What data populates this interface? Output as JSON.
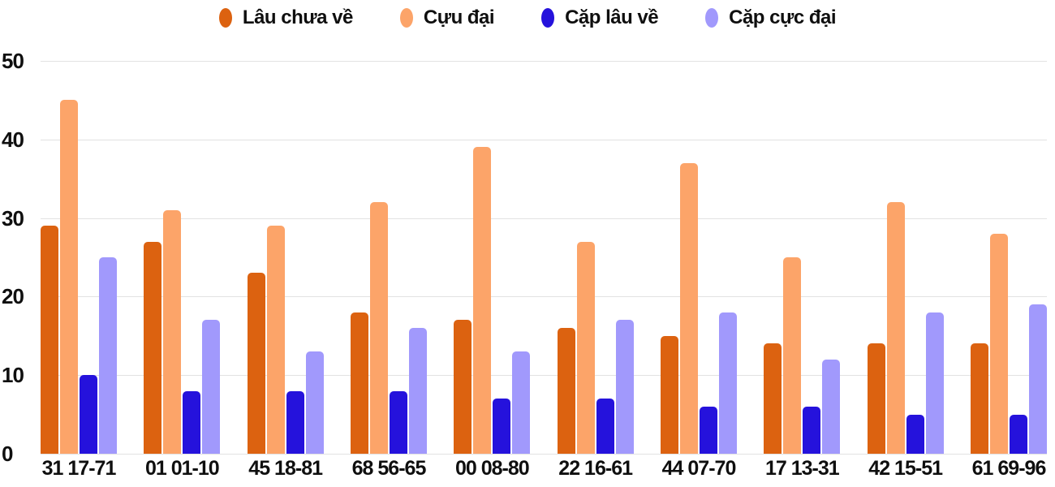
{
  "legend": {
    "items": [
      {
        "label": "Lâu chưa về",
        "color": "#dc6210"
      },
      {
        "label": "Cựu đại",
        "color": "#fca469"
      },
      {
        "label": "Cặp lâu về",
        "color": "#2512dc"
      },
      {
        "label": "Cặp cực đại",
        "color": "#a199fc"
      }
    ]
  },
  "colors": {
    "grid": "#e2e2e2",
    "text": "#0f0f0f",
    "background": "#ffffff"
  },
  "chart_data": {
    "type": "bar",
    "title": "",
    "xlabel": "",
    "ylabel": "",
    "grid": true,
    "legend_position": "top",
    "ylim": [
      0,
      50
    ],
    "yticks": [
      0,
      10,
      20,
      30,
      40,
      50
    ],
    "categories": [
      "31 17-71",
      "01 01-10",
      "45 18-81",
      "68 56-65",
      "00 08-80",
      "22 16-61",
      "44 07-70",
      "17 13-31",
      "42 15-51",
      "61 69-96"
    ],
    "series": [
      {
        "name": "Lâu chưa về",
        "color": "#dc6210",
        "values": [
          29,
          27,
          23,
          18,
          17,
          16,
          15,
          14,
          14,
          14
        ]
      },
      {
        "name": "Cựu đại",
        "color": "#fca469",
        "values": [
          45,
          31,
          29,
          32,
          39,
          27,
          37,
          25,
          32,
          28
        ]
      },
      {
        "name": "Cặp lâu về",
        "color": "#2512dc",
        "values": [
          10,
          8,
          8,
          8,
          7,
          7,
          6,
          6,
          5,
          5
        ]
      },
      {
        "name": "Cặp cực đại",
        "color": "#a199fc",
        "values": [
          25,
          17,
          13,
          16,
          13,
          17,
          18,
          12,
          18,
          19
        ]
      }
    ]
  }
}
